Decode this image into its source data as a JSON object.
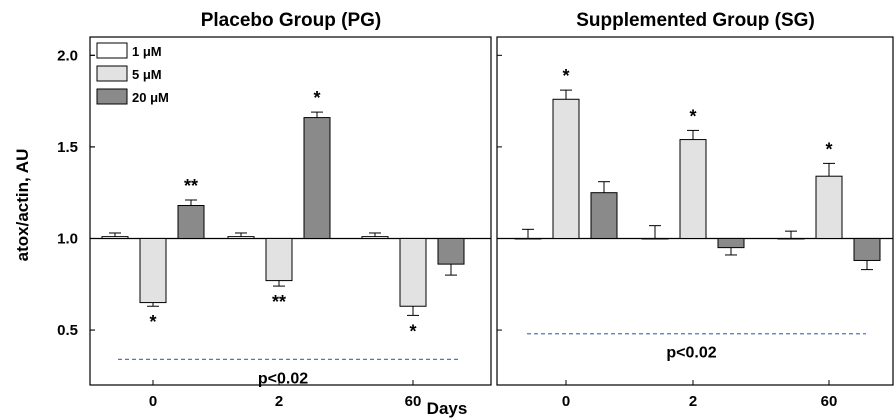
{
  "chart_data": {
    "type": "bar",
    "ylabel": "atox/actin, AU",
    "xlabel": "Days",
    "ylim": [
      0.2,
      2.1
    ],
    "yticks": [
      "0.5",
      "1.0",
      "1.5",
      "2.0"
    ],
    "baseline": 1.0,
    "categories": [
      "0",
      "2",
      "60"
    ],
    "legend": {
      "placement": "top-left",
      "entries": [
        {
          "label": "1 μM",
          "color": "#ffffff"
        },
        {
          "label": "5 μM",
          "color": "#e2e2e2"
        },
        {
          "label": "20 μM",
          "color": "#8a8a8a"
        }
      ]
    },
    "panels": [
      {
        "title": "Placebo Group (PG)",
        "series": [
          {
            "name": "1 μM",
            "color": "#ffffff",
            "values": [
              1.01,
              1.01,
              1.01
            ],
            "errors": [
              0.02,
              0.02,
              0.02
            ],
            "stars": [
              "",
              "",
              ""
            ]
          },
          {
            "name": "5 μM",
            "color": "#e2e2e2",
            "values": [
              0.65,
              0.77,
              0.63
            ],
            "errors": [
              0.02,
              0.03,
              0.05
            ],
            "stars": [
              "*",
              "**",
              "*"
            ]
          },
          {
            "name": "20 μM",
            "color": "#8a8a8a",
            "values": [
              1.18,
              1.66,
              0.86
            ],
            "errors": [
              0.03,
              0.03,
              0.06
            ],
            "stars": [
              "**",
              "*",
              ""
            ]
          }
        ],
        "significance": {
          "label": "p<0.02",
          "level": 0.34
        }
      },
      {
        "title": "Supplemented Group (SG)",
        "series": [
          {
            "name": "1 μM",
            "color": "#ffffff",
            "values": [
              1.0,
              1.0,
              1.0
            ],
            "errors": [
              0.05,
              0.07,
              0.04
            ],
            "stars": [
              "",
              "",
              ""
            ]
          },
          {
            "name": "5 μM",
            "color": "#e2e2e2",
            "values": [
              1.76,
              1.54,
              1.34
            ],
            "errors": [
              0.05,
              0.05,
              0.07
            ],
            "stars": [
              "*",
              "*",
              "*"
            ]
          },
          {
            "name": "20 μM",
            "color": "#8a8a8a",
            "values": [
              1.25,
              0.95,
              0.88
            ],
            "errors": [
              0.06,
              0.04,
              0.05
            ],
            "stars": [
              "",
              "",
              ""
            ]
          }
        ],
        "significance": {
          "label": "p<0.02",
          "level": 0.48
        }
      }
    ]
  }
}
